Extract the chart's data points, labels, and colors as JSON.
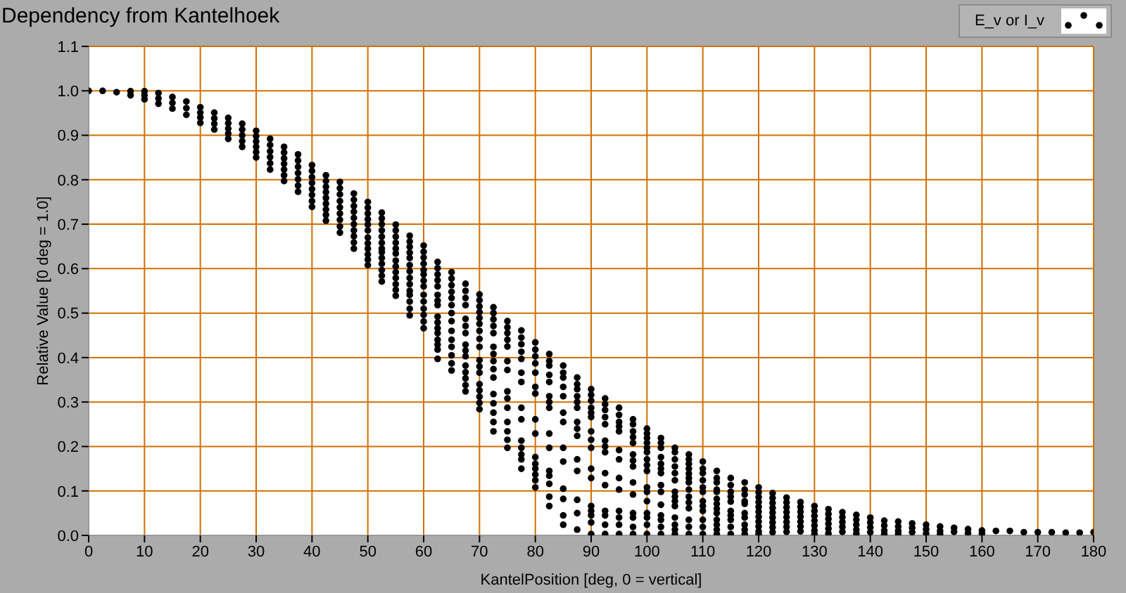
{
  "chart_data": {
    "type": "scatter",
    "title": "Dependency from Kantelhoek",
    "xlabel": "KantelPosition [deg, 0 = vertical]",
    "ylabel": "Relative Value [0 deg = 1.0]",
    "xlim": [
      0,
      180
    ],
    "xticks": [
      0,
      10,
      20,
      30,
      40,
      50,
      60,
      70,
      80,
      90,
      100,
      110,
      120,
      130,
      140,
      150,
      160,
      170,
      180
    ],
    "ylim": [
      0,
      1.1
    ],
    "yticks": [
      {
        "value": 0,
        "label": "0.0"
      },
      0.1,
      0.2,
      0.3,
      0.4,
      0.5,
      0.6,
      0.7,
      0.8,
      0.9,
      {
        "value": 1,
        "label": "1.0"
      },
      1.1
    ],
    "grid": true,
    "legend": "top right",
    "marker": "circle",
    "series": [
      {
        "name": "E_v or I_v",
        "color": "#000000",
        "x": [
          0,
          2.5,
          5,
          7.5,
          7.5,
          10,
          10,
          10,
          12.5,
          12.5,
          12.5,
          15,
          15,
          15,
          17.5,
          17.5,
          17.5,
          20,
          20,
          20,
          20,
          22.5,
          22.5,
          22.5,
          22.5,
          25,
          25,
          25,
          25,
          25,
          27.5,
          27.5,
          27.5,
          27.5,
          27.5,
          30,
          30,
          30,
          30,
          30,
          30,
          32.5,
          32.5,
          32.5,
          32.5,
          32.5,
          32.5,
          35,
          35,
          35,
          35,
          35,
          35,
          35,
          37.5,
          37.5,
          37.5,
          37.5,
          37.5,
          37.5,
          37.5,
          40,
          40,
          40,
          40,
          40,
          40,
          40,
          40,
          42.5,
          42.5,
          42.5,
          42.5,
          42.5,
          42.5,
          42.5,
          42.5,
          42.5,
          45,
          45,
          45,
          45,
          45,
          45,
          45,
          45,
          45,
          47.5,
          47.5,
          47.5,
          47.5,
          47.5,
          47.5,
          47.5,
          47.5,
          47.5,
          47.5,
          50,
          50,
          50,
          50,
          50,
          50,
          50,
          50,
          50,
          50,
          50,
          50,
          52.5,
          52.5,
          52.5,
          52.5,
          52.5,
          52.5,
          52.5,
          52.5,
          52.5,
          52.5,
          52.5,
          52.5,
          52.5,
          55,
          55,
          55,
          55,
          55,
          55,
          55,
          55,
          55,
          55,
          55,
          55,
          55,
          57.5,
          57.5,
          57.5,
          57.5,
          57.5,
          57.5,
          57.5,
          57.5,
          57.5,
          57.5,
          57.5,
          57.5,
          57.5,
          57.5,
          60,
          60,
          60,
          60,
          60,
          60,
          60,
          60,
          60,
          60,
          60,
          60,
          60,
          60,
          62.5,
          62.5,
          62.5,
          62.5,
          62.5,
          62.5,
          62.5,
          62.5,
          62.5,
          62.5,
          62.5,
          62.5,
          62.5,
          62.5,
          62.5,
          62.5,
          65,
          65,
          65,
          65,
          65,
          65,
          65,
          65,
          65,
          65,
          65,
          65,
          65,
          65,
          67.5,
          67.5,
          67.5,
          67.5,
          67.5,
          67.5,
          67.5,
          67.5,
          67.5,
          67.5,
          67.5,
          67.5,
          67.5,
          67.5,
          67.5,
          70,
          70,
          70,
          70,
          70,
          70,
          70,
          70,
          70,
          70,
          70,
          70,
          70,
          70,
          70,
          70,
          70,
          72.5,
          72.5,
          72.5,
          72.5,
          72.5,
          72.5,
          72.5,
          72.5,
          72.5,
          72.5,
          72.5,
          72.5,
          72.5,
          72.5,
          72.5,
          75,
          75,
          75,
          75,
          75,
          75,
          75,
          75,
          75,
          75,
          75,
          75,
          75,
          75,
          77.5,
          77.5,
          77.5,
          77.5,
          77.5,
          77.5,
          77.5,
          77.5,
          77.5,
          77.5,
          77.5,
          77.5,
          77.5,
          77.5,
          80,
          80,
          80,
          80,
          80,
          80,
          80,
          80,
          80,
          80,
          80,
          80,
          80,
          80,
          80,
          82.5,
          82.5,
          82.5,
          82.5,
          82.5,
          82.5,
          82.5,
          82.5,
          82.5,
          82.5,
          82.5,
          82.5,
          82.5,
          82.5,
          82.5,
          85,
          85,
          85,
          85,
          85,
          85,
          85,
          85,
          85,
          85,
          85,
          85,
          85,
          87.5,
          87.5,
          87.5,
          87.5,
          87.5,
          87.5,
          87.5,
          87.5,
          87.5,
          87.5,
          87.5,
          87.5,
          87.5,
          87.5,
          90,
          90,
          90,
          90,
          90,
          90,
          90,
          90,
          90,
          90,
          90,
          90,
          90,
          90,
          90,
          90,
          92.5,
          92.5,
          92.5,
          92.5,
          92.5,
          92.5,
          92.5,
          92.5,
          92.5,
          92.5,
          92.5,
          92.5,
          92.5,
          92.5,
          95,
          95,
          95,
          95,
          95,
          95,
          95,
          95,
          95,
          95,
          95,
          95,
          95,
          97.5,
          97.5,
          97.5,
          97.5,
          97.5,
          97.5,
          97.5,
          97.5,
          97.5,
          97.5,
          97.5,
          97.5,
          97.5,
          97.5,
          100,
          100,
          100,
          100,
          100,
          100,
          100,
          100,
          100,
          100,
          100,
          100,
          100,
          100,
          100,
          100,
          102.5,
          102.5,
          102.5,
          102.5,
          102.5,
          102.5,
          102.5,
          102.5,
          102.5,
          102.5,
          102.5,
          102.5,
          102.5,
          102.5,
          105,
          105,
          105,
          105,
          105,
          105,
          105,
          105,
          105,
          105,
          105,
          105,
          105,
          105,
          107.5,
          107.5,
          107.5,
          107.5,
          107.5,
          107.5,
          107.5,
          107.5,
          107.5,
          107.5,
          107.5,
          107.5,
          107.5,
          107.5,
          110,
          110,
          110,
          110,
          110,
          110,
          110,
          110,
          110,
          110,
          110,
          110,
          112.5,
          112.5,
          112.5,
          112.5,
          112.5,
          112.5,
          112.5,
          112.5,
          112.5,
          112.5,
          112.5,
          112.5,
          112.5,
          115,
          115,
          115,
          115,
          115,
          115,
          115,
          115,
          115,
          115,
          117.5,
          117.5,
          117.5,
          117.5,
          117.5,
          117.5,
          117.5,
          117.5,
          117.5,
          117.5,
          120,
          120,
          120,
          120,
          120,
          120,
          120,
          120,
          120,
          120,
          120,
          122.5,
          122.5,
          122.5,
          122.5,
          122.5,
          122.5,
          122.5,
          122.5,
          122.5,
          125,
          125,
          125,
          125,
          125,
          125,
          125,
          125,
          127.5,
          127.5,
          127.5,
          127.5,
          127.5,
          127.5,
          127.5,
          130,
          130,
          130,
          130,
          130,
          130,
          130,
          132.5,
          132.5,
          132.5,
          132.5,
          132.5,
          132.5,
          135,
          135,
          135,
          135,
          135,
          137.5,
          137.5,
          137.5,
          137.5,
          137.5,
          140,
          140,
          140,
          140,
          142.5,
          142.5,
          142.5,
          142.5,
          145,
          145,
          145,
          145,
          147.5,
          147.5,
          147.5,
          150,
          150,
          150,
          152.5,
          152.5,
          152.5,
          155,
          155,
          157.5,
          157.5,
          160,
          160,
          162.5,
          165,
          167.5,
          170,
          172.5,
          175,
          177.5,
          180
        ],
        "values": [
          1.0,
          1.0,
          0.997,
          0.999,
          0.99,
          0.999,
          0.99,
          0.981,
          0.995,
          0.983,
          0.971,
          0.986,
          0.973,
          0.96,
          0.976,
          0.961,
          0.946,
          0.963,
          0.951,
          0.94,
          0.928,
          0.951,
          0.938,
          0.926,
          0.913,
          0.939,
          0.927,
          0.915,
          0.904,
          0.892,
          0.926,
          0.913,
          0.9,
          0.887,
          0.874,
          0.91,
          0.898,
          0.886,
          0.874,
          0.862,
          0.85,
          0.892,
          0.878,
          0.864,
          0.851,
          0.837,
          0.823,
          0.874,
          0.861,
          0.848,
          0.836,
          0.823,
          0.81,
          0.797,
          0.857,
          0.843,
          0.829,
          0.815,
          0.801,
          0.787,
          0.773,
          0.833,
          0.82,
          0.806,
          0.793,
          0.779,
          0.766,
          0.752,
          0.739,
          0.81,
          0.797,
          0.784,
          0.772,
          0.759,
          0.746,
          0.733,
          0.721,
          0.708,
          0.795,
          0.781,
          0.767,
          0.752,
          0.738,
          0.724,
          0.71,
          0.695,
          0.681,
          0.769,
          0.755,
          0.741,
          0.728,
          0.714,
          0.7,
          0.686,
          0.673,
          0.659,
          0.645,
          0.75,
          0.737,
          0.724,
          0.711,
          0.699,
          0.686,
          0.67,
          0.657,
          0.645,
          0.632,
          0.62,
          0.608,
          0.726,
          0.713,
          0.7,
          0.686,
          0.672,
          0.658,
          0.645,
          0.637,
          0.624,
          0.611,
          0.597,
          0.584,
          0.571,
          0.699,
          0.686,
          0.672,
          0.658,
          0.645,
          0.634,
          0.618,
          0.605,
          0.592,
          0.579,
          0.565,
          0.552,
          0.539,
          0.674,
          0.661,
          0.649,
          0.636,
          0.624,
          0.608,
          0.594,
          0.579,
          0.565,
          0.55,
          0.541,
          0.526,
          0.51,
          0.495,
          0.652,
          0.638,
          0.625,
          0.611,
          0.597,
          0.587,
          0.573,
          0.56,
          0.541,
          0.526,
          0.51,
          0.496,
          0.481,
          0.466,
          0.615,
          0.601,
          0.587,
          0.574,
          0.56,
          0.541,
          0.528,
          0.518,
          0.492,
          0.479,
          0.466,
          0.455,
          0.44,
          0.429,
          0.418,
          0.397,
          0.592,
          0.578,
          0.563,
          0.548,
          0.534,
          0.518,
          0.5,
          0.482,
          0.46,
          0.44,
          0.424,
          0.405,
          0.387,
          0.371,
          0.566,
          0.55,
          0.534,
          0.518,
          0.487,
          0.471,
          0.455,
          0.429,
          0.416,
          0.403,
          0.382,
          0.367,
          0.353,
          0.338,
          0.324,
          0.542,
          0.529,
          0.515,
          0.502,
          0.489,
          0.476,
          0.46,
          0.442,
          0.424,
          0.394,
          0.38,
          0.366,
          0.34,
          0.326,
          0.312,
          0.298,
          0.284,
          0.513,
          0.5,
          0.486,
          0.471,
          0.455,
          0.424,
          0.408,
          0.392,
          0.374,
          0.355,
          0.318,
          0.297,
          0.276,
          0.255,
          0.234,
          0.482,
          0.468,
          0.455,
          0.44,
          0.425,
          0.392,
          0.372,
          0.324,
          0.308,
          0.287,
          0.255,
          0.234,
          0.215,
          0.197,
          0.461,
          0.445,
          0.43,
          0.413,
          0.397,
          0.366,
          0.345,
          0.287,
          0.261,
          0.213,
          0.197,
          0.182,
          0.171,
          0.15,
          0.434,
          0.418,
          0.403,
          0.387,
          0.366,
          0.334,
          0.319,
          0.261,
          0.229,
          0.176,
          0.161,
          0.15,
          0.137,
          0.124,
          0.108,
          0.408,
          0.392,
          0.382,
          0.361,
          0.345,
          0.313,
          0.3,
          0.287,
          0.229,
          0.197,
          0.145,
          0.134,
          0.116,
          0.087,
          0.066,
          0.382,
          0.366,
          0.355,
          0.334,
          0.313,
          0.276,
          0.255,
          0.197,
          0.166,
          0.105,
          0.082,
          0.045,
          0.024,
          0.355,
          0.34,
          0.329,
          0.313,
          0.3,
          0.287,
          0.255,
          0.24,
          0.224,
          0.171,
          0.145,
          0.08,
          0.05,
          0.013,
          0.329,
          0.316,
          0.303,
          0.287,
          0.276,
          0.266,
          0.234,
          0.215,
          0.197,
          0.15,
          0.129,
          0.066,
          0.055,
          0.045,
          0.029,
          0.003,
          0.308,
          0.295,
          0.282,
          0.266,
          0.25,
          0.213,
          0.2,
          0.187,
          0.14,
          0.113,
          0.055,
          0.045,
          0.024,
          0.003,
          0.287,
          0.271,
          0.255,
          0.245,
          0.234,
          0.192,
          0.171,
          0.129,
          0.103,
          0.055,
          0.04,
          0.024,
          0.003,
          0.261,
          0.25,
          0.234,
          0.221,
          0.208,
          0.182,
          0.168,
          0.155,
          0.119,
          0.092,
          0.05,
          0.04,
          0.019,
          0.003,
          0.24,
          0.229,
          0.219,
          0.208,
          0.197,
          0.187,
          0.171,
          0.158,
          0.145,
          0.108,
          0.098,
          0.077,
          0.05,
          0.04,
          0.024,
          0.003,
          0.219,
          0.208,
          0.197,
          0.176,
          0.161,
          0.15,
          0.14,
          0.113,
          0.098,
          0.069,
          0.045,
          0.035,
          0.019,
          0.003,
          0.197,
          0.187,
          0.171,
          0.155,
          0.14,
          0.124,
          0.098,
          0.087,
          0.077,
          0.066,
          0.04,
          0.024,
          0.013,
          0.003,
          0.182,
          0.171,
          0.161,
          0.15,
          0.139,
          0.129,
          0.119,
          0.103,
          0.087,
          0.074,
          0.061,
          0.035,
          0.019,
          0.003,
          0.166,
          0.15,
          0.14,
          0.124,
          0.108,
          0.098,
          0.077,
          0.066,
          0.055,
          0.035,
          0.019,
          0.003,
          0.145,
          0.129,
          0.119,
          0.103,
          0.098,
          0.082,
          0.071,
          0.06,
          0.05,
          0.035,
          0.024,
          0.013,
          0.003,
          0.129,
          0.113,
          0.098,
          0.087,
          0.076,
          0.055,
          0.045,
          0.035,
          0.019,
          0.003,
          0.119,
          0.103,
          0.092,
          0.077,
          0.071,
          0.05,
          0.04,
          0.024,
          0.013,
          0.003,
          0.108,
          0.097,
          0.086,
          0.075,
          0.064,
          0.053,
          0.042,
          0.031,
          0.02,
          0.009,
          0.003,
          0.095,
          0.084,
          0.073,
          0.062,
          0.051,
          0.04,
          0.029,
          0.018,
          0.007,
          0.085,
          0.074,
          0.063,
          0.052,
          0.041,
          0.03,
          0.019,
          0.008,
          0.075,
          0.064,
          0.053,
          0.042,
          0.031,
          0.02,
          0.009,
          0.066,
          0.055,
          0.044,
          0.033,
          0.022,
          0.011,
          0.003,
          0.059,
          0.048,
          0.037,
          0.026,
          0.015,
          0.004,
          0.052,
          0.041,
          0.03,
          0.019,
          0.008,
          0.046,
          0.035,
          0.024,
          0.013,
          0.004,
          0.04,
          0.029,
          0.018,
          0.007,
          0.033,
          0.022,
          0.011,
          0.003,
          0.031,
          0.02,
          0.01,
          0.003,
          0.027,
          0.017,
          0.007,
          0.024,
          0.014,
          0.004,
          0.02,
          0.01,
          0.003,
          0.017,
          0.008,
          0.014,
          0.005,
          0.011,
          0.004,
          0.01,
          0.01,
          0.007,
          0.007,
          0.007,
          0.006,
          0.006,
          0.007
        ]
      }
    ]
  }
}
